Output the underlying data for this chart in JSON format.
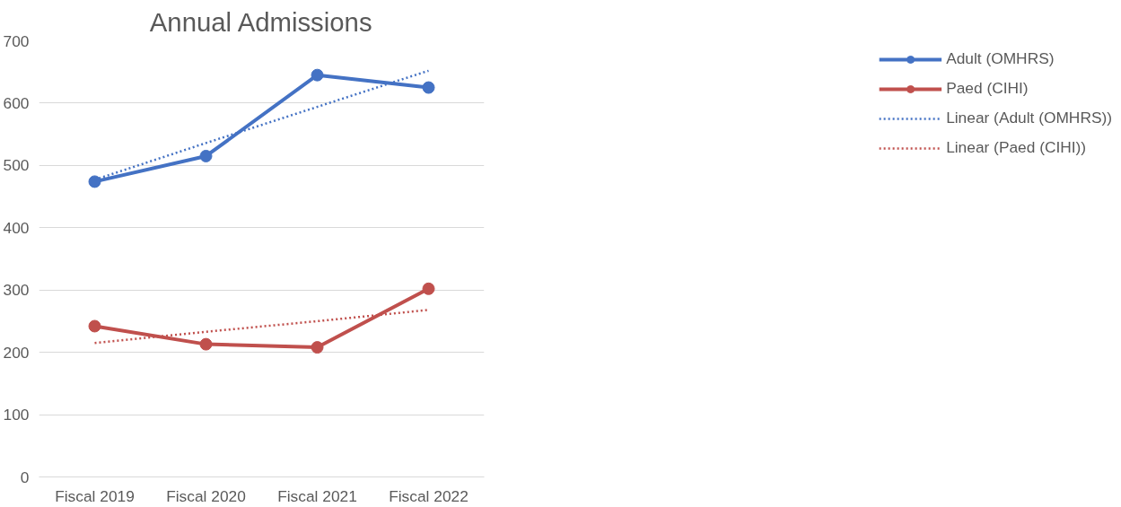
{
  "chart_data": {
    "type": "line",
    "title": "Annual Admissions",
    "categories": [
      "Fiscal 2019",
      "Fiscal 2020",
      "Fiscal 2021",
      "Fiscal 2022"
    ],
    "series": [
      {
        "name": "Adult (OMHRS)",
        "color": "#4472c4",
        "values": [
          474,
          515,
          645,
          625
        ],
        "marker": "circle",
        "line_style": "solid"
      },
      {
        "name": "Paed (CIHI)",
        "color": "#c0504d",
        "values": [
          242,
          213,
          208,
          302
        ],
        "marker": "circle",
        "line_style": "solid"
      },
      {
        "name": "Linear (Adult (OMHRS))",
        "color": "#4472c4",
        "type": "line",
        "x": [
          "Fiscal 2019",
          "Fiscal 2020",
          "Fiscal 2021",
          "Fiscal 2022"
        ],
        "values": [
          477,
          536,
          594,
          652
        ],
        "marker": "none",
        "line_style": "dotted"
      },
      {
        "name": "Linear (Paed (CIHI))",
        "color": "#c0504d",
        "type": "line",
        "x": [
          "Fiscal 2019",
          "Fiscal 2020",
          "Fiscal 2021",
          "Fiscal 2022"
        ],
        "values": [
          215,
          233,
          250,
          268
        ],
        "marker": "none",
        "line_style": "dotted"
      }
    ],
    "ylim": [
      0,
      700
    ],
    "yticks": [
      0,
      100,
      200,
      300,
      400,
      500,
      600,
      700
    ],
    "grid": "y",
    "legend": "right"
  }
}
